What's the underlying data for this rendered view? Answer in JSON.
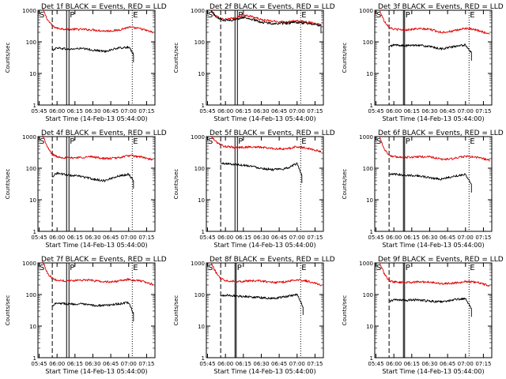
{
  "colors": {
    "events": "#000000",
    "lld": "#e00000",
    "axes": "#000000",
    "background": "#ffffff"
  },
  "start_time_label": "Start Time (14-Feb-13 05:44:00)",
  "ylabel": "Counts/sec",
  "marker_labels": {
    "s": "S",
    "p": "P",
    "e": "E"
  },
  "chart_data": [
    {
      "type": "line",
      "title": "Det 1f BLACK = Events, RED = LLD",
      "x_ticks": [
        "05:45",
        "06:00",
        "06:15",
        "06:30",
        "06:45",
        "07:00",
        "07:15"
      ],
      "y_ticks": [
        "1",
        "10",
        "100",
        "1000"
      ],
      "ylim": [
        1,
        1000
      ],
      "yscale": "log",
      "xlim": [
        "05:44",
        "07:22"
      ],
      "markers": {
        "s_dashed": "05:56",
        "p_band": [
          "06:08",
          "06:10"
        ],
        "e_dotted": "07:03"
      },
      "series": [
        {
          "name": "LLD",
          "color": "red",
          "x": [
            "05:48",
            "05:52",
            "05:56",
            "06:00",
            "06:10",
            "06:20",
            "06:30",
            "06:40",
            "06:50",
            "07:00",
            "07:10",
            "07:20"
          ],
          "y": [
            1100,
            500,
            320,
            270,
            250,
            250,
            240,
            220,
            230,
            290,
            260,
            200
          ]
        },
        {
          "name": "Events",
          "color": "black",
          "x": [
            "05:56",
            "06:00",
            "06:10",
            "06:20",
            "06:30",
            "06:40",
            "06:50",
            "07:00",
            "07:04"
          ],
          "y": [
            55,
            65,
            58,
            62,
            55,
            50,
            62,
            68,
            40
          ]
        }
      ]
    },
    {
      "type": "line",
      "title": "Det 2f BLACK = Events, RED = LLD",
      "x_ticks": [
        "05:45",
        "06:00",
        "06:15",
        "06:30",
        "06:45",
        "07:00",
        "07:15"
      ],
      "y_ticks": [
        "1",
        "10",
        "100",
        "1000"
      ],
      "ylim": [
        1,
        1000
      ],
      "yscale": "log",
      "xlim": [
        "05:44",
        "07:22"
      ],
      "markers": {
        "s_dashed": "05:56",
        "p_band": [
          "06:08",
          "06:10"
        ],
        "e_dotted": "07:03"
      },
      "series": [
        {
          "name": "LLD",
          "color": "red",
          "x": [
            "05:48",
            "05:52",
            "05:56",
            "06:00",
            "06:08",
            "06:15",
            "06:22",
            "06:30",
            "06:40",
            "06:50",
            "07:00",
            "07:10",
            "07:20"
          ],
          "y": [
            1000,
            650,
            550,
            520,
            560,
            700,
            640,
            500,
            450,
            430,
            450,
            420,
            350
          ]
        },
        {
          "name": "Events",
          "color": "black",
          "x": [
            "05:48",
            "05:52",
            "05:56",
            "06:00",
            "06:08",
            "06:15",
            "06:22",
            "06:30",
            "06:40",
            "06:50",
            "07:00",
            "07:10",
            "07:20"
          ],
          "y": [
            950,
            620,
            520,
            480,
            500,
            600,
            520,
            420,
            380,
            380,
            410,
            380,
            330
          ]
        }
      ]
    },
    {
      "type": "line",
      "title": "Det 3f BLACK = Events, RED = LLD",
      "x_ticks": [
        "05:45",
        "06:00",
        "06:15",
        "06:30",
        "06:45",
        "07:00",
        "07:15"
      ],
      "y_ticks": [
        "1",
        "10",
        "100",
        "1000"
      ],
      "ylim": [
        1,
        1000
      ],
      "yscale": "log",
      "xlim": [
        "05:44",
        "07:22"
      ],
      "markers": {
        "s_dashed": "05:56",
        "p_band": [
          "06:08",
          "06:09"
        ],
        "e_dotted": "07:03"
      },
      "series": [
        {
          "name": "LLD",
          "color": "red",
          "x": [
            "05:48",
            "05:52",
            "05:56",
            "06:00",
            "06:10",
            "06:20",
            "06:30",
            "06:40",
            "06:50",
            "07:00",
            "07:10",
            "07:20"
          ],
          "y": [
            1000,
            450,
            300,
            250,
            240,
            260,
            250,
            200,
            220,
            270,
            230,
            180
          ]
        },
        {
          "name": "Events",
          "color": "black",
          "x": [
            "05:56",
            "06:00",
            "06:10",
            "06:20",
            "06:30",
            "06:40",
            "06:50",
            "07:00",
            "07:05"
          ],
          "y": [
            70,
            80,
            75,
            80,
            70,
            60,
            70,
            80,
            45
          ]
        }
      ]
    },
    {
      "type": "line",
      "title": "Det 4f BLACK = Events, RED = LLD",
      "x_ticks": [
        "05:45",
        "06:00",
        "06:15",
        "06:30",
        "06:45",
        "07:00",
        "07:15"
      ],
      "y_ticks": [
        "1",
        "10",
        "100",
        "1000"
      ],
      "ylim": [
        1,
        1000
      ],
      "yscale": "log",
      "xlim": [
        "05:44",
        "07:22"
      ],
      "markers": {
        "s_dashed": "05:56",
        "p_band": [
          "06:08",
          "06:10"
        ],
        "e_dotted": "07:03"
      },
      "series": [
        {
          "name": "LLD",
          "color": "red",
          "x": [
            "05:48",
            "05:52",
            "05:56",
            "06:00",
            "06:10",
            "06:20",
            "06:30",
            "06:40",
            "06:50",
            "07:00",
            "07:10",
            "07:20"
          ],
          "y": [
            1100,
            450,
            280,
            230,
            210,
            220,
            230,
            200,
            210,
            250,
            230,
            180
          ]
        },
        {
          "name": "Events",
          "color": "black",
          "x": [
            "05:56",
            "06:00",
            "06:10",
            "06:20",
            "06:30",
            "06:40",
            "06:50",
            "07:00",
            "07:04"
          ],
          "y": [
            55,
            70,
            60,
            55,
            45,
            40,
            55,
            65,
            40
          ]
        }
      ]
    },
    {
      "type": "line",
      "title": "Det 5f BLACK = Events, RED = LLD",
      "x_ticks": [
        "05:45",
        "06:00",
        "06:15",
        "06:30",
        "06:45",
        "07:00",
        "07:15"
      ],
      "y_ticks": [
        "1",
        "10",
        "100",
        "1000"
      ],
      "ylim": [
        1,
        1000
      ],
      "yscale": "log",
      "xlim": [
        "05:44",
        "07:22"
      ],
      "markers": {
        "s_dashed": "05:56",
        "p_band": [
          "06:08",
          "06:10"
        ],
        "e_dotted": "07:03"
      },
      "series": [
        {
          "name": "LLD",
          "color": "red",
          "x": [
            "05:48",
            "05:52",
            "05:56",
            "06:00",
            "06:10",
            "06:20",
            "06:30",
            "06:40",
            "06:50",
            "07:00",
            "07:10",
            "07:20"
          ],
          "y": [
            1000,
            700,
            550,
            480,
            450,
            470,
            460,
            420,
            400,
            480,
            420,
            330
          ]
        },
        {
          "name": "Events",
          "color": "black",
          "x": [
            "05:56",
            "06:00",
            "06:10",
            "06:20",
            "06:30",
            "06:40",
            "06:50",
            "07:00",
            "07:04"
          ],
          "y": [
            140,
            140,
            130,
            120,
            100,
            90,
            95,
            140,
            60
          ]
        }
      ]
    },
    {
      "type": "line",
      "title": "Det 6f BLACK = Events, RED = LLD",
      "x_ticks": [
        "05:45",
        "06:00",
        "06:15",
        "06:30",
        "06:45",
        "07:00",
        "07:15"
      ],
      "y_ticks": [
        "1",
        "10",
        "100",
        "1000"
      ],
      "ylim": [
        1,
        1000
      ],
      "yscale": "log",
      "xlim": [
        "05:44",
        "07:22"
      ],
      "markers": {
        "s_dashed": "05:56",
        "p_band": [
          "06:08",
          "06:09"
        ],
        "e_dotted": "07:03"
      },
      "series": [
        {
          "name": "LLD",
          "color": "red",
          "x": [
            "05:48",
            "05:52",
            "05:56",
            "06:00",
            "06:10",
            "06:20",
            "06:30",
            "06:40",
            "06:50",
            "07:00",
            "07:10",
            "07:20"
          ],
          "y": [
            1000,
            400,
            260,
            230,
            220,
            230,
            230,
            190,
            200,
            240,
            220,
            180
          ]
        },
        {
          "name": "Events",
          "color": "black",
          "x": [
            "05:56",
            "06:00",
            "06:10",
            "06:20",
            "06:30",
            "06:40",
            "06:50",
            "07:00",
            "07:05"
          ],
          "y": [
            60,
            65,
            60,
            58,
            50,
            45,
            55,
            65,
            30
          ]
        }
      ]
    },
    {
      "type": "line",
      "title": "Det 7f BLACK = Events, RED = LLD",
      "x_ticks": [
        "05:45",
        "06:00",
        "06:15",
        "06:30",
        "06:45",
        "07:00",
        "07:15"
      ],
      "y_ticks": [
        "1",
        "10",
        "100",
        "1000"
      ],
      "ylim": [
        1,
        1000
      ],
      "yscale": "log",
      "xlim": [
        "05:44",
        "07:22"
      ],
      "markers": {
        "s_dashed": "05:56",
        "p_band": [
          "06:08",
          "06:10"
        ],
        "e_dotted": "07:03"
      },
      "series": [
        {
          "name": "LLD",
          "color": "red",
          "x": [
            "05:48",
            "05:52",
            "05:56",
            "06:00",
            "06:10",
            "06:20",
            "06:30",
            "06:40",
            "06:50",
            "07:00",
            "07:10",
            "07:20"
          ],
          "y": [
            1100,
            480,
            320,
            280,
            270,
            290,
            280,
            250,
            260,
            300,
            270,
            210
          ]
        },
        {
          "name": "Events",
          "color": "black",
          "x": [
            "05:56",
            "06:00",
            "06:10",
            "06:20",
            "06:30",
            "06:40",
            "06:50",
            "07:00",
            "07:04"
          ],
          "y": [
            45,
            55,
            50,
            50,
            45,
            45,
            50,
            55,
            25
          ]
        }
      ]
    },
    {
      "type": "line",
      "title": "Det 8f BLACK = Events, RED = LLD",
      "x_ticks": [
        "05:45",
        "06:00",
        "06:15",
        "06:30",
        "06:45",
        "07:00",
        "07:15"
      ],
      "y_ticks": [
        "1",
        "10",
        "100",
        "1000"
      ],
      "ylim": [
        1,
        1000
      ],
      "yscale": "log",
      "xlim": [
        "05:44",
        "07:22"
      ],
      "markers": {
        "s_dashed": "05:56",
        "p_band": [
          "06:08",
          "06:09"
        ],
        "e_dotted": "07:03"
      },
      "series": [
        {
          "name": "LLD",
          "color": "red",
          "x": [
            "05:48",
            "05:52",
            "05:56",
            "06:00",
            "06:10",
            "06:20",
            "06:30",
            "06:40",
            "06:50",
            "07:00",
            "07:10",
            "07:20"
          ],
          "y": [
            1000,
            500,
            330,
            280,
            260,
            270,
            270,
            240,
            250,
            300,
            260,
            200
          ]
        },
        {
          "name": "Events",
          "color": "black",
          "x": [
            "05:56",
            "06:00",
            "06:10",
            "06:20",
            "06:30",
            "06:40",
            "06:50",
            "07:00",
            "07:05"
          ],
          "y": [
            90,
            95,
            90,
            85,
            80,
            75,
            85,
            100,
            40
          ]
        }
      ]
    },
    {
      "type": "line",
      "title": "Det 9f BLACK = Events, RED = LLD",
      "x_ticks": [
        "05:45",
        "06:00",
        "06:15",
        "06:30",
        "06:45",
        "07:00",
        "07:15"
      ],
      "y_ticks": [
        "1",
        "10",
        "100",
        "1000"
      ],
      "ylim": [
        1,
        1000
      ],
      "yscale": "log",
      "xlim": [
        "05:44",
        "07:22"
      ],
      "markers": {
        "s_dashed": "05:56",
        "p_band": [
          "06:08",
          "06:09"
        ],
        "e_dotted": "07:03"
      },
      "series": [
        {
          "name": "LLD",
          "color": "red",
          "x": [
            "05:48",
            "05:52",
            "05:56",
            "06:00",
            "06:10",
            "06:20",
            "06:30",
            "06:40",
            "06:50",
            "07:00",
            "07:10",
            "07:20"
          ],
          "y": [
            1000,
            450,
            280,
            250,
            240,
            250,
            250,
            220,
            230,
            260,
            240,
            190
          ]
        },
        {
          "name": "Events",
          "color": "black",
          "x": [
            "05:56",
            "06:00",
            "06:10",
            "06:20",
            "06:30",
            "06:40",
            "06:50",
            "07:00",
            "07:05"
          ],
          "y": [
            60,
            68,
            65,
            68,
            62,
            58,
            68,
            75,
            35
          ]
        }
      ]
    }
  ]
}
